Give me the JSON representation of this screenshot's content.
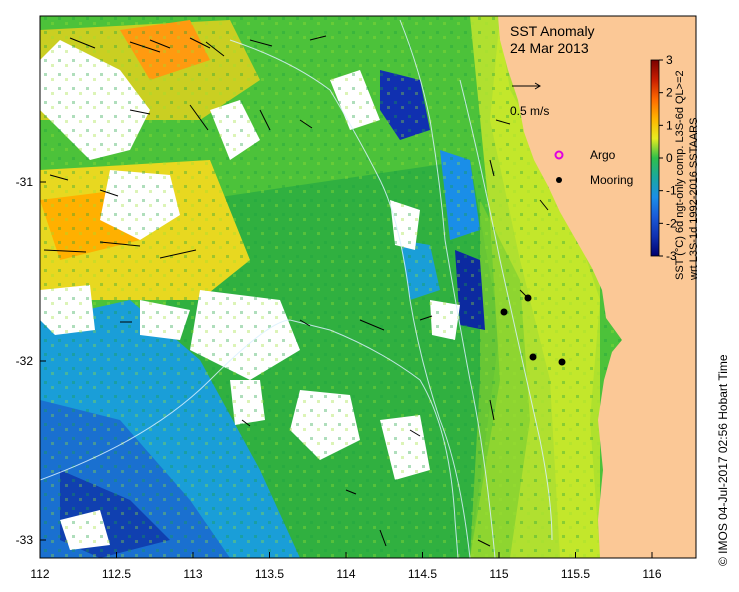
{
  "title": {
    "line1": "SST Anomaly",
    "line2": "24 Mar 2013"
  },
  "scale_vector": {
    "label": "0.5 m/s"
  },
  "legend": {
    "argo_label": "Argo",
    "mooring_label": "Mooring",
    "argo_color": "#e000e0",
    "mooring_color": "#000000"
  },
  "colorbar": {
    "ticks": [
      "3",
      "2",
      "1",
      "0",
      "-1",
      "-2",
      "-3"
    ],
    "title_line1": "SST (°C) 6d ngt-only comp. L3S-6d QL>=2",
    "title_line2": "wrt L3S-1d 1992-2016 SSTAARS",
    "colors": [
      "#7a0000",
      "#c81e00",
      "#ff6a00",
      "#ffb400",
      "#e8ec20",
      "#8ed81e",
      "#2fc04a",
      "#1aa8a0",
      "#1a8ee8",
      "#1040c0",
      "#00006e"
    ]
  },
  "axes": {
    "x_ticks": [
      "112",
      "112.5",
      "113",
      "113.5",
      "114",
      "114.5",
      "115",
      "115.5",
      "116"
    ],
    "y_ticks": [
      "-31",
      "-32",
      "-33"
    ]
  },
  "credit": "© IMOS 04-Jul-2017 02:56 Hobart Time",
  "colors": {
    "land": "#fbc896",
    "nodata": "#ffffff",
    "frame": "#000000"
  }
}
